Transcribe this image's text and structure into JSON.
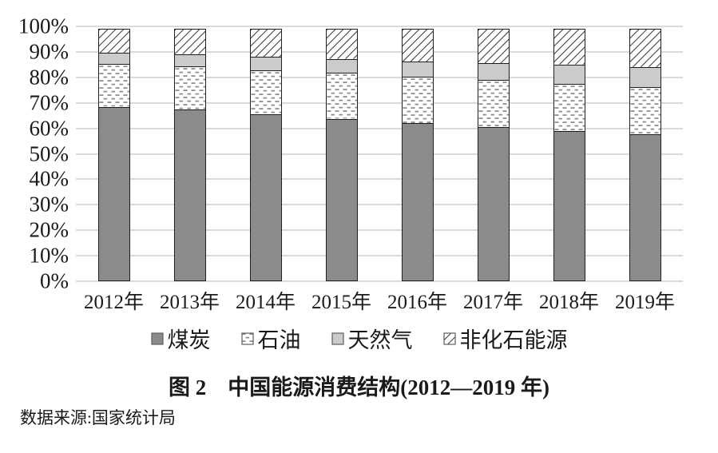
{
  "chart_data": {
    "type": "bar",
    "variant": "stacked-percent",
    "title": "图 2　中国能源消费结构(2012—2019 年)",
    "categories": [
      "2012年",
      "2013年",
      "2014年",
      "2015年",
      "2016年",
      "2017年",
      "2018年",
      "2019年"
    ],
    "series": [
      {
        "key": "coal",
        "name": "煤炭",
        "pattern": "solid",
        "values": [
          68.5,
          67.4,
          65.6,
          63.7,
          62.0,
          60.4,
          59.0,
          57.7
        ]
      },
      {
        "key": "oil",
        "name": "石油",
        "pattern": "dashes",
        "values": [
          17.0,
          17.1,
          17.4,
          18.3,
          18.5,
          18.8,
          18.9,
          18.9
        ]
      },
      {
        "key": "gas",
        "name": "天然气",
        "pattern": "solid",
        "values": [
          4.8,
          5.3,
          5.7,
          5.9,
          6.2,
          7.0,
          7.8,
          8.1
        ]
      },
      {
        "key": "nonfossil",
        "name": "非化石能源",
        "pattern": "diagonal",
        "values": [
          9.7,
          10.2,
          11.3,
          12.1,
          13.3,
          13.8,
          14.3,
          15.3
        ]
      }
    ],
    "y_ticks": [
      "0%",
      "10%",
      "20%",
      "30%",
      "40%",
      "50%",
      "60%",
      "70%",
      "80%",
      "90%",
      "100%"
    ],
    "ylim": [
      0,
      100
    ],
    "xlabel": "",
    "ylabel": "",
    "grid": true,
    "legend_position": "bottom"
  },
  "source": {
    "text": "数据来源:国家统计局"
  },
  "colors": {
    "coal_fill": "#8b8b8b",
    "gas_fill": "#cbcbcb",
    "pattern_bg": "#ffffff",
    "dash_stroke": "#8f8f8f",
    "hatch_stroke": "#3a3a3a",
    "segment_border": "#1f1f1f",
    "gridline": "#dadada",
    "text": "#1a1a1a"
  }
}
